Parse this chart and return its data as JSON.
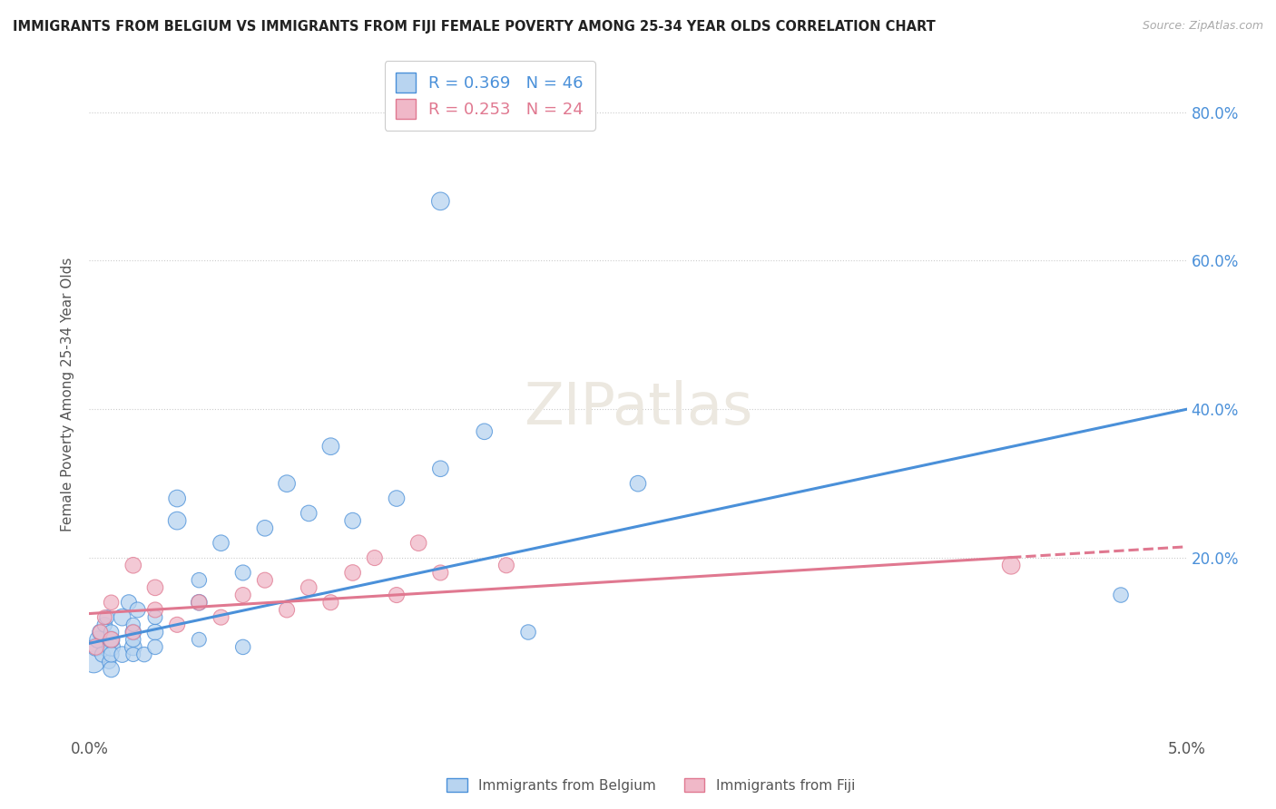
{
  "title": "IMMIGRANTS FROM BELGIUM VS IMMIGRANTS FROM FIJI FEMALE POVERTY AMONG 25-34 YEAR OLDS CORRELATION CHART",
  "source": "Source: ZipAtlas.com",
  "ylabel": "Female Poverty Among 25-34 Year Olds",
  "ytick_labels": [
    "20.0%",
    "40.0%",
    "60.0%",
    "80.0%"
  ],
  "ytick_values": [
    0.2,
    0.4,
    0.6,
    0.8
  ],
  "xlim": [
    0.0,
    0.05
  ],
  "ylim": [
    -0.04,
    0.88
  ],
  "legend_belgium": "R = 0.369   N = 46",
  "legend_fiji": "R = 0.253   N = 24",
  "belgium_color": "#b8d4f0",
  "fiji_color": "#f0b8c8",
  "belgium_line_color": "#4a90d9",
  "fiji_line_color": "#e07890",
  "belgium_scatter_x": [
    0.0002,
    0.0003,
    0.0004,
    0.0005,
    0.0006,
    0.0007,
    0.0008,
    0.0009,
    0.001,
    0.001,
    0.001,
    0.001,
    0.001,
    0.0015,
    0.0015,
    0.0018,
    0.002,
    0.002,
    0.002,
    0.002,
    0.002,
    0.0022,
    0.0025,
    0.003,
    0.003,
    0.003,
    0.004,
    0.004,
    0.005,
    0.005,
    0.005,
    0.006,
    0.007,
    0.007,
    0.008,
    0.009,
    0.01,
    0.011,
    0.012,
    0.014,
    0.016,
    0.018,
    0.02,
    0.025,
    0.016,
    0.047
  ],
  "belgium_scatter_y": [
    0.06,
    0.08,
    0.09,
    0.1,
    0.07,
    0.11,
    0.12,
    0.06,
    0.08,
    0.09,
    0.05,
    0.07,
    0.1,
    0.12,
    0.07,
    0.14,
    0.08,
    0.1,
    0.09,
    0.07,
    0.11,
    0.13,
    0.07,
    0.1,
    0.08,
    0.12,
    0.25,
    0.28,
    0.14,
    0.17,
    0.09,
    0.22,
    0.18,
    0.08,
    0.24,
    0.3,
    0.26,
    0.35,
    0.25,
    0.28,
    0.32,
    0.37,
    0.1,
    0.3,
    0.68,
    0.15
  ],
  "belgium_sizes": [
    300,
    200,
    180,
    160,
    150,
    140,
    130,
    120,
    200,
    180,
    160,
    150,
    140,
    180,
    160,
    150,
    180,
    160,
    140,
    130,
    120,
    150,
    140,
    160,
    140,
    130,
    200,
    180,
    160,
    140,
    130,
    160,
    150,
    140,
    160,
    180,
    160,
    180,
    160,
    160,
    160,
    160,
    140,
    160,
    200,
    140
  ],
  "fiji_scatter_x": [
    0.0003,
    0.0005,
    0.0007,
    0.001,
    0.001,
    0.002,
    0.002,
    0.003,
    0.003,
    0.004,
    0.005,
    0.006,
    0.007,
    0.008,
    0.009,
    0.01,
    0.011,
    0.012,
    0.013,
    0.014,
    0.015,
    0.016,
    0.019,
    0.042
  ],
  "fiji_scatter_y": [
    0.08,
    0.1,
    0.12,
    0.09,
    0.14,
    0.1,
    0.19,
    0.13,
    0.16,
    0.11,
    0.14,
    0.12,
    0.15,
    0.17,
    0.13,
    0.16,
    0.14,
    0.18,
    0.2,
    0.15,
    0.22,
    0.18,
    0.19,
    0.19
  ],
  "fiji_sizes": [
    160,
    140,
    130,
    160,
    140,
    140,
    160,
    150,
    160,
    150,
    150,
    150,
    150,
    150,
    150,
    160,
    150,
    160,
    150,
    150,
    160,
    150,
    150,
    200
  ]
}
